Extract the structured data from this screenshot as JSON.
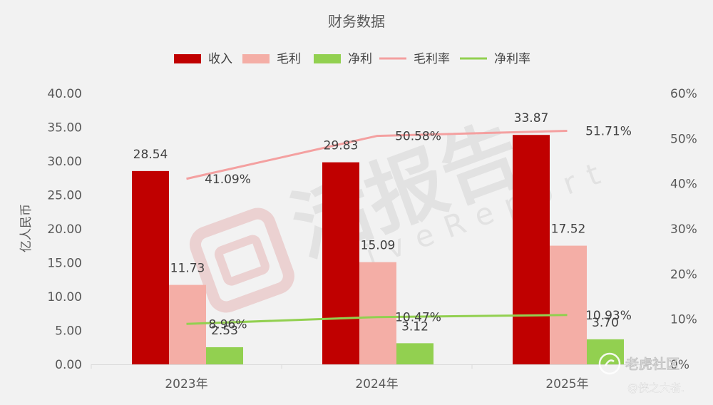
{
  "chart_data": {
    "type": "bar",
    "title": "财务数据",
    "ylabel": "亿人民币",
    "categories": [
      "2023年",
      "2024年",
      "2025年"
    ],
    "series": [
      {
        "name": "收入",
        "kind": "bar",
        "axis": "left",
        "color": "#c00000",
        "values": [
          28.54,
          29.83,
          33.87
        ],
        "labels": [
          "28.54",
          "29.83",
          "33.87"
        ]
      },
      {
        "name": "毛利",
        "kind": "bar",
        "axis": "left",
        "color": "#f4aea6",
        "values": [
          11.73,
          15.09,
          17.52
        ],
        "labels": [
          "11.73",
          "15.09",
          "17.52"
        ]
      },
      {
        "name": "净利",
        "kind": "bar",
        "axis": "left",
        "color": "#92d050",
        "values": [
          2.53,
          3.12,
          3.7
        ],
        "labels": [
          "2.53",
          "3.12",
          "3.70"
        ]
      },
      {
        "name": "毛利率",
        "kind": "line",
        "axis": "right",
        "color": "#f4a0a0",
        "label_color": "#e00000",
        "values": [
          41.09,
          50.58,
          51.71
        ],
        "labels": [
          "41.09%",
          "50.58%",
          "51.71%"
        ]
      },
      {
        "name": "净利率",
        "kind": "line",
        "axis": "right",
        "color": "#92d050",
        "label_color": "#00b050",
        "values": [
          8.96,
          10.47,
          10.93
        ],
        "labels": [
          "8.96%",
          "10.47%",
          "10.93%"
        ]
      }
    ],
    "ylim": [
      0,
      40
    ],
    "yticks": [
      "0.00",
      "5.00",
      "10.00",
      "15.00",
      "20.00",
      "25.00",
      "30.00",
      "35.00",
      "40.00"
    ],
    "y2lim": [
      0,
      60
    ],
    "y2ticks": [
      "0%",
      "10%",
      "20%",
      "30%",
      "40%",
      "50%",
      "60%"
    ],
    "grid": false,
    "legend_position": "top"
  },
  "watermark": {
    "main": "活报告",
    "sub": "LiveReport"
  },
  "overlay": {
    "brand": "老虎社区",
    "author": "@侠之大者."
  }
}
